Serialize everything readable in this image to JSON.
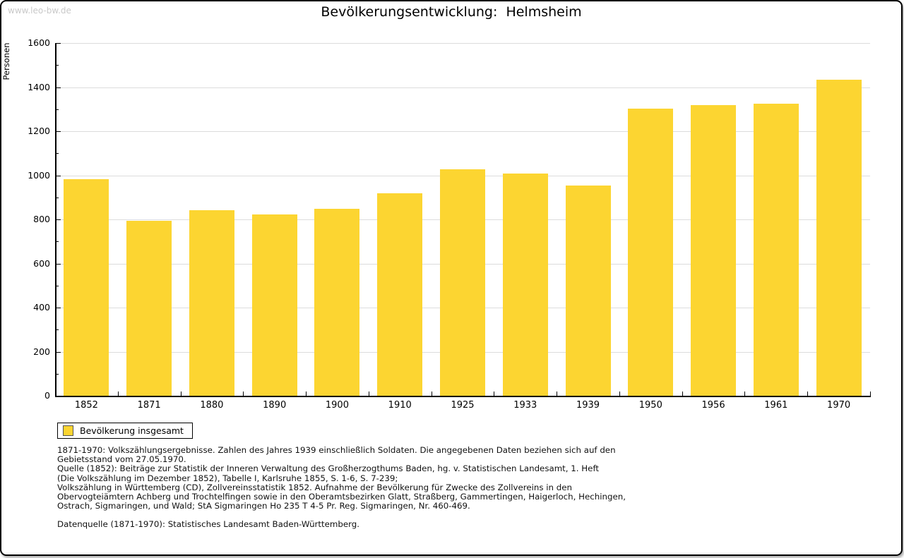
{
  "page": {
    "watermark": "www.leo-bw.de",
    "title": "Bevölkerungsentwicklung:  Helmsheim"
  },
  "chart_data": {
    "type": "bar",
    "title": "Bevölkerungsentwicklung:  Helmsheim",
    "xlabel": "",
    "ylabel": "Personen",
    "categories": [
      "1852",
      "1871",
      "1880",
      "1890",
      "1900",
      "1910",
      "1925",
      "1933",
      "1939",
      "1950",
      "1956",
      "1961",
      "1970"
    ],
    "values": [
      983,
      795,
      842,
      824,
      849,
      920,
      1026,
      1007,
      954,
      1302,
      1318,
      1325,
      1433
    ],
    "series_name": "Bevölkerung insgesamt",
    "ylim": [
      0,
      1600
    ],
    "ytick_step": 200,
    "yminor_step": 100,
    "grid": true,
    "legend_position": "bottom-left",
    "bar_color": "#FCD531",
    "gridline_color": "#dcdcdc"
  },
  "legend": {
    "label": "Bevölkerung insgesamt"
  },
  "footer": {
    "lines": [
      "1871-1970: Volkszählungsergebnisse. Zahlen des Jahres 1939 einschließlich Soldaten. Die angegebenen Daten beziehen sich auf den",
      "Gebietsstand vom 27.05.1970.",
      "Quelle (1852): Beiträge zur Statistik der Inneren Verwaltung des Großherzogthums Baden, hg. v. Statistischen Landesamt, 1. Heft",
      "(Die Volkszählung im Dezember 1852), Tabelle I, Karlsruhe 1855, S. 1-6, S. 7-239;",
      "Volkszählung in Württemberg (CD), Zollvereinsstatistik 1852. Aufnahme der Bevölkerung für Zwecke des Zollvereins in den",
      "Obervogteiämtern Achberg und Trochtelfingen sowie in den Oberamtsbezirken Glatt, Straßberg, Gammertingen, Haigerloch, Hechingen,",
      "Ostrach, Sigmaringen, und Wald; StA Sigmaringen Ho 235 T 4-5 Pr. Reg. Sigmaringen, Nr. 460-469."
    ],
    "datasource": "Datenquelle (1871-1970): Statistisches Landesamt Baden-Württemberg."
  }
}
